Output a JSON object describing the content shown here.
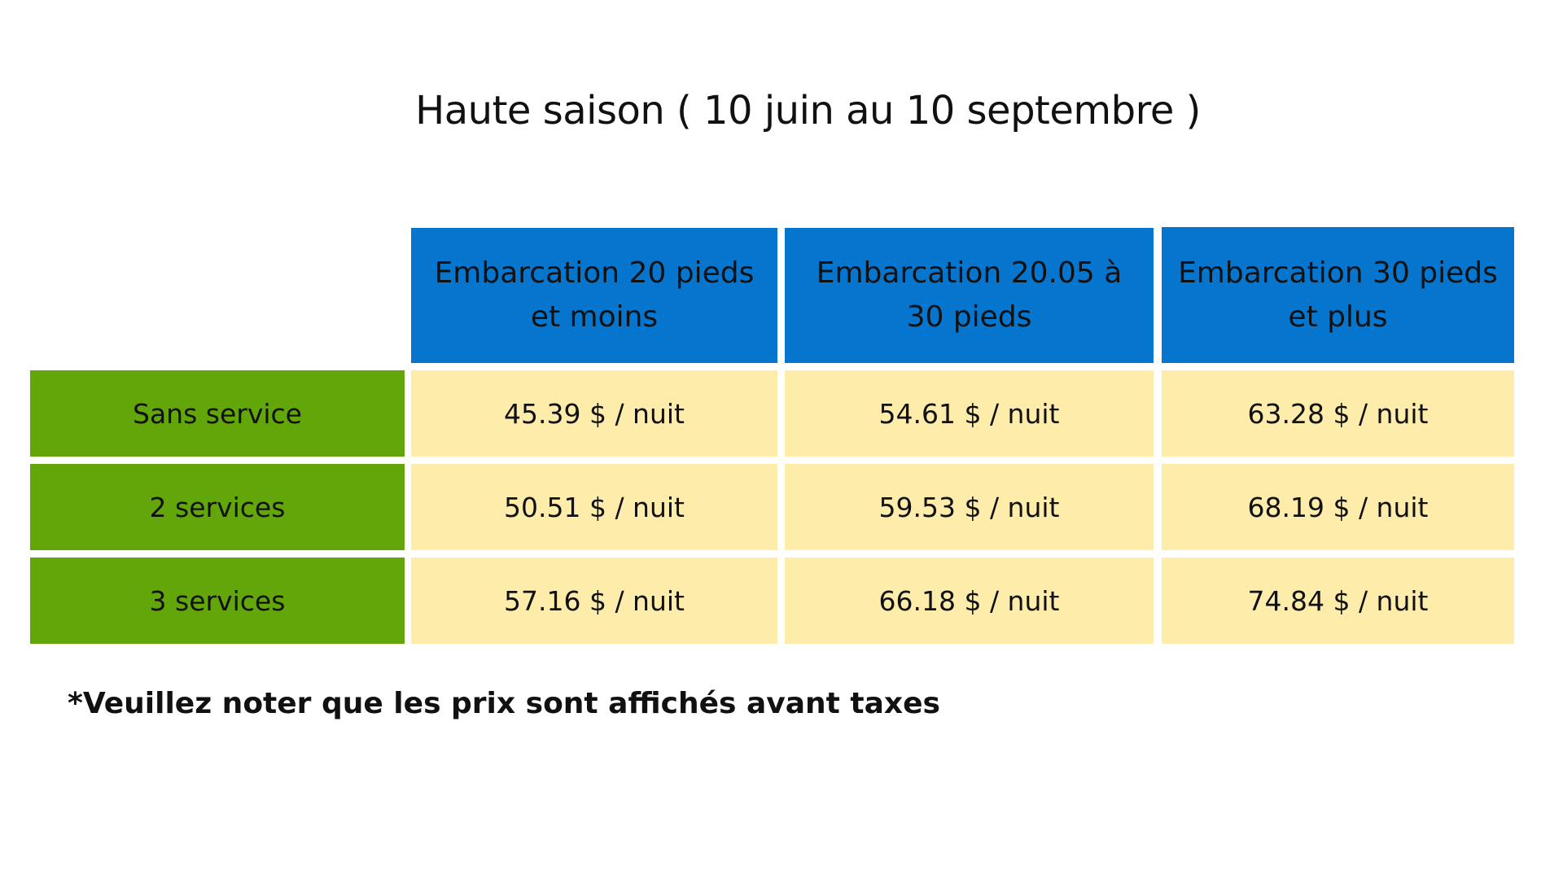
{
  "title": "Haute saison ( 10 juin au 10 septembre )",
  "table": {
    "columns": [
      "Embarcation 20 pieds et moins",
      "Embarcation 20.05 à 30 pieds",
      "Embarcation 30 pieds et plus"
    ],
    "rows": [
      {
        "label": "Sans service",
        "values": [
          "45.39 $ / nuit",
          "54.61 $ / nuit",
          "63.28 $ / nuit"
        ]
      },
      {
        "label": "2 services",
        "values": [
          "50.51 $ / nuit",
          "59.53 $ / nuit",
          "68.19 $ / nuit"
        ]
      },
      {
        "label": "3 services",
        "values": [
          "57.16 $ / nuit",
          "66.18 $ / nuit",
          "74.84 $ / nuit"
        ]
      }
    ]
  },
  "note": "*Veuillez noter que les prix sont affichés avant taxes",
  "colors": {
    "header": "#0575CE",
    "row_label": "#62A60A",
    "value_cell": "#FEECAB"
  }
}
